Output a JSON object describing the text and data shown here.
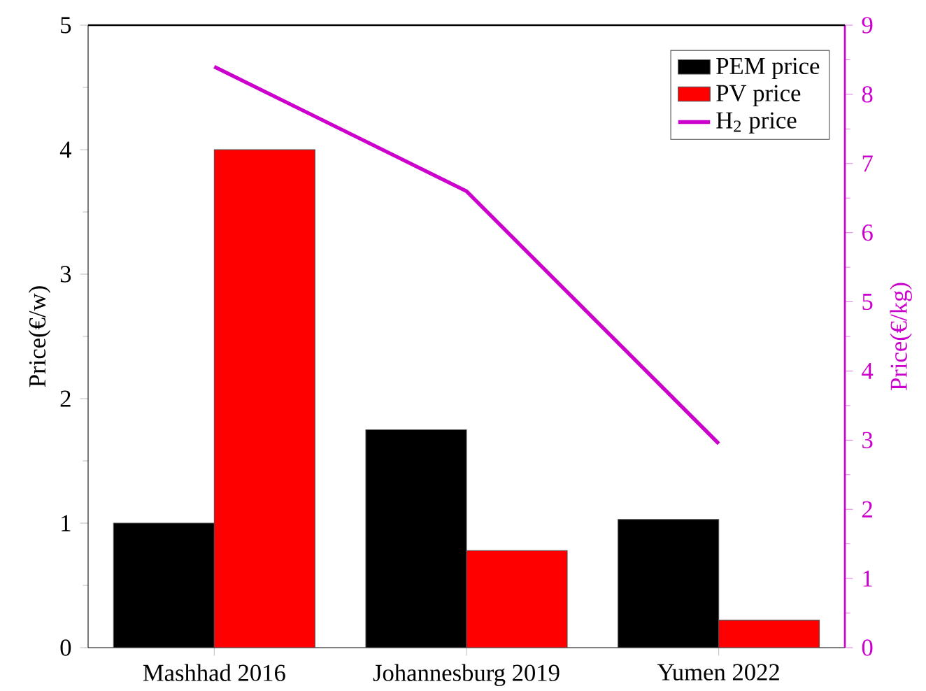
{
  "chart_data": {
    "type": "bar",
    "categories": [
      "Mashhad 2016",
      "Johannesburg 2019",
      "Yumen 2022"
    ],
    "series": [
      {
        "name": "PEM price",
        "color": "#000000",
        "values": [
          1.0,
          1.75,
          1.03
        ]
      },
      {
        "name": "PV price",
        "color": "#ff0000",
        "values": [
          4.0,
          0.78,
          0.22
        ]
      },
      {
        "name": "H$_{2}$ price",
        "color": "#cc00cc",
        "type": "line",
        "axis": "y2",
        "values": [
          8.4,
          6.6,
          2.95
        ]
      }
    ],
    "ylabel": "Price(€/w)",
    "y2label": "Price(€/kg)",
    "ylim": [
      0,
      5
    ],
    "yticks": [
      0,
      1,
      2,
      3,
      4,
      5
    ],
    "y2lim": [
      0,
      9
    ],
    "y2ticks": [
      0,
      1,
      2,
      3,
      4,
      5,
      6,
      7,
      8,
      9
    ],
    "legend": "top right"
  }
}
